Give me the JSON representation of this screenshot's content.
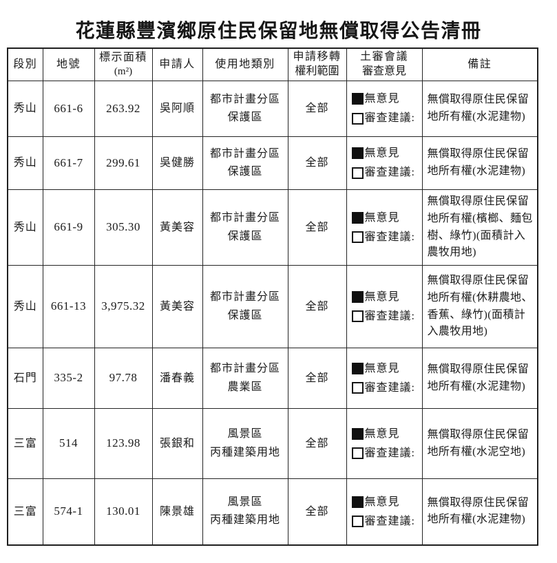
{
  "page": {
    "title": "花蓮縣豐濱鄉原住民保留地無償取得公告清冊"
  },
  "colors": {
    "ink": "#1b1b1b",
    "paper": "#ffffff"
  },
  "table": {
    "headers": {
      "section": "段別",
      "land_no": "地號",
      "area_line1": "標示面積",
      "area_line2": "(m²)",
      "applicant": "申請人",
      "land_use": "使用地類別",
      "scope_line1": "申請移轉",
      "scope_line2": "權利範圍",
      "review_line1": "土審會議",
      "review_line2": "審查意見",
      "remark": "備註"
    },
    "review_options": {
      "checked_label": "無意見",
      "unchecked_label": "審查建議:"
    },
    "rows": [
      {
        "section": "秀山",
        "land_no": "661-6",
        "area": "263.92",
        "applicant": "吳阿順",
        "land_use_line1": "都市計畫分區",
        "land_use_line2": "保護區",
        "scope": "全部",
        "remark": "無償取得原住民保留地所有權(水泥建物)"
      },
      {
        "section": "秀山",
        "land_no": "661-7",
        "area": "299.61",
        "applicant": "吳健勝",
        "land_use_line1": "都市計畫分區",
        "land_use_line2": "保護區",
        "scope": "全部",
        "remark": "無償取得原住民保留地所有權(水泥建物)"
      },
      {
        "section": "秀山",
        "land_no": "661-9",
        "area": "305.30",
        "applicant": "黃美容",
        "land_use_line1": "都市計畫分區",
        "land_use_line2": "保護區",
        "scope": "全部",
        "remark": "無償取得原住民保留地所有權(檳榔、麵包樹、綠竹)(面積計入農牧用地)"
      },
      {
        "section": "秀山",
        "land_no": "661-13",
        "area": "3,975.32",
        "applicant": "黃美容",
        "land_use_line1": "都市計畫分區",
        "land_use_line2": "保護區",
        "scope": "全部",
        "remark": "無償取得原住民保留地所有權(休耕農地、香蕉、綠竹)(面積計入農牧用地)"
      },
      {
        "section": "石門",
        "land_no": "335-2",
        "area": "97.78",
        "applicant": "潘春義",
        "land_use_line1": "都市計畫分區",
        "land_use_line2": "農業區",
        "scope": "全部",
        "remark": "無償取得原住民保留地所有權(水泥建物)"
      },
      {
        "section": "三富",
        "land_no": "514",
        "area": "123.98",
        "applicant": "張銀和",
        "land_use_line1": "風景區",
        "land_use_line2": "丙種建築用地",
        "scope": "全部",
        "remark": "無償取得原住民保留地所有權(水泥空地)"
      },
      {
        "section": "三富",
        "land_no": "574-1",
        "area": "130.01",
        "applicant": "陳景雄",
        "land_use_line1": "風景區",
        "land_use_line2": "丙種建築用地",
        "scope": "全部",
        "remark": "無償取得原住民保留地所有權(水泥建物)"
      }
    ]
  }
}
